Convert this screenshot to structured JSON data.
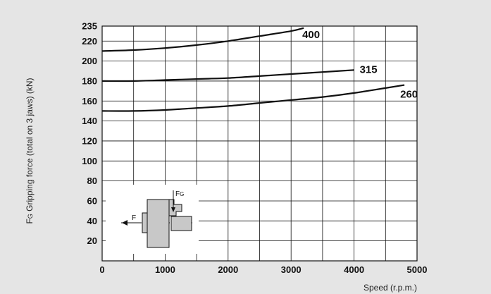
{
  "chart_data": {
    "type": "line",
    "xlabel": "Speed (r.p.m.)",
    "ylabel_prefix": "F",
    "ylabel_sub": "G",
    "ylabel": "Gripping force (total on 3 jaws) (kN)",
    "xlim": [
      0,
      5000
    ],
    "ylim": [
      0,
      235
    ],
    "grid": true,
    "x_ticks": [
      0,
      1000,
      2000,
      3000,
      4000,
      5000
    ],
    "x_tick_labels": [
      "0",
      "1000",
      "2000",
      "3000",
      "4000",
      "5000"
    ],
    "y_ticks": [
      20,
      40,
      60,
      80,
      100,
      120,
      140,
      160,
      180,
      200,
      220,
      235
    ],
    "y_tick_labels": [
      "20",
      "40",
      "60",
      "80",
      "100",
      "120",
      "140",
      "160",
      "180",
      "200",
      "220",
      "235"
    ],
    "series": [
      {
        "name": "400",
        "x": [
          0,
          500,
          1000,
          1500,
          2000,
          2500,
          3000,
          3200
        ],
        "y": [
          210,
          211,
          213,
          216,
          220,
          225,
          230,
          233
        ]
      },
      {
        "name": "315",
        "x": [
          0,
          500,
          1000,
          1500,
          2000,
          2500,
          3000,
          3500,
          4000
        ],
        "y": [
          180,
          180,
          181,
          182,
          183,
          185,
          187,
          189,
          191
        ]
      },
      {
        "name": "260",
        "x": [
          0,
          500,
          1000,
          1500,
          2000,
          2500,
          3000,
          3500,
          4000,
          4500,
          4800
        ],
        "y": [
          150,
          150,
          151,
          153,
          155,
          158,
          161,
          164,
          168,
          173,
          176
        ]
      }
    ]
  },
  "inset": {
    "force_label": "F",
    "grip_label_prefix": "F",
    "grip_label_sub": "G"
  }
}
